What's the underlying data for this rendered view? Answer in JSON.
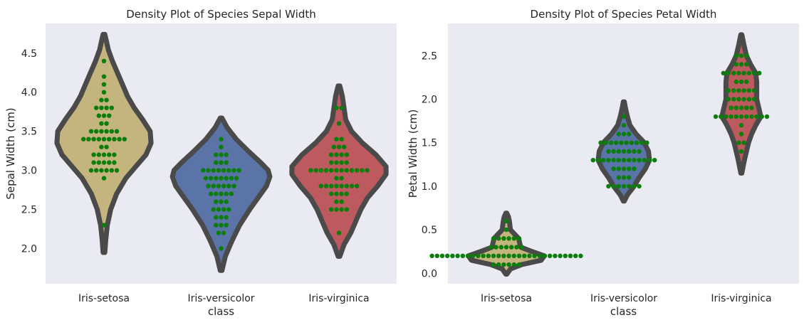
{
  "chart_data": [
    {
      "type": "violin",
      "title": "Density Plot of Species Sepal Width",
      "xlabel": "class",
      "ylabel": "Sepal Width (cm)",
      "ylim": [
        1.55,
        4.88
      ],
      "yticks": [
        2.0,
        2.5,
        3.0,
        3.5,
        4.0,
        4.5
      ],
      "ytick_labels": [
        "2.0",
        "2.5",
        "3.0",
        "3.5",
        "4.0",
        "4.5"
      ],
      "grid": false,
      "categories": [
        "Iris-setosa",
        "Iris-versicolor",
        "Iris-virginica"
      ],
      "colors": [
        "#C4B47E",
        "#5A74A8",
        "#BD5A5F"
      ],
      "violins": [
        {
          "category": "Iris-setosa",
          "min": 1.95,
          "max": 4.74,
          "profile": [
            [
              1.95,
              0.01
            ],
            [
              2.1,
              0.02
            ],
            [
              2.3,
              0.04
            ],
            [
              2.5,
              0.08
            ],
            [
              2.7,
              0.15
            ],
            [
              2.9,
              0.26
            ],
            [
              3.05,
              0.38
            ],
            [
              3.2,
              0.5
            ],
            [
              3.35,
              0.56
            ],
            [
              3.5,
              0.55
            ],
            [
              3.65,
              0.46
            ],
            [
              3.8,
              0.36
            ],
            [
              3.95,
              0.28
            ],
            [
              4.1,
              0.22
            ],
            [
              4.25,
              0.16
            ],
            [
              4.4,
              0.1
            ],
            [
              4.55,
              0.05
            ],
            [
              4.65,
              0.03
            ],
            [
              4.74,
              0.01
            ]
          ]
        },
        {
          "category": "Iris-versicolor",
          "min": 1.72,
          "max": 3.67,
          "profile": [
            [
              1.72,
              0.01
            ],
            [
              1.9,
              0.05
            ],
            [
              2.1,
              0.13
            ],
            [
              2.3,
              0.22
            ],
            [
              2.5,
              0.34
            ],
            [
              2.65,
              0.44
            ],
            [
              2.8,
              0.54
            ],
            [
              2.92,
              0.58
            ],
            [
              3.0,
              0.56
            ],
            [
              3.1,
              0.47
            ],
            [
              3.25,
              0.32
            ],
            [
              3.4,
              0.18
            ],
            [
              3.55,
              0.07
            ],
            [
              3.67,
              0.01
            ]
          ]
        },
        {
          "category": "Iris-virginica",
          "min": 1.9,
          "max": 4.08,
          "profile": [
            [
              1.9,
              0.01
            ],
            [
              2.05,
              0.06
            ],
            [
              2.2,
              0.14
            ],
            [
              2.35,
              0.2
            ],
            [
              2.5,
              0.26
            ],
            [
              2.65,
              0.34
            ],
            [
              2.8,
              0.46
            ],
            [
              2.95,
              0.56
            ],
            [
              3.05,
              0.56
            ],
            [
              3.2,
              0.44
            ],
            [
              3.35,
              0.28
            ],
            [
              3.5,
              0.15
            ],
            [
              3.65,
              0.08
            ],
            [
              3.8,
              0.06
            ],
            [
              3.95,
              0.04
            ],
            [
              4.08,
              0.01
            ]
          ]
        }
      ],
      "points": [
        {
          "category": "Iris-setosa",
          "values": [
            2.3,
            2.9,
            3.0,
            3.0,
            3.0,
            3.0,
            3.0,
            3.0,
            3.1,
            3.1,
            3.1,
            3.1,
            3.1,
            3.2,
            3.2,
            3.2,
            3.2,
            3.2,
            3.3,
            3.3,
            3.4,
            3.4,
            3.4,
            3.4,
            3.4,
            3.4,
            3.4,
            3.4,
            3.4,
            3.5,
            3.5,
            3.5,
            3.5,
            3.5,
            3.5,
            3.6,
            3.6,
            3.7,
            3.7,
            3.7,
            3.8,
            3.8,
            3.8,
            3.8,
            3.9,
            3.9,
            4.0,
            4.1,
            4.2,
            4.4
          ]
        },
        {
          "category": "Iris-versicolor",
          "values": [
            2.0,
            2.2,
            2.2,
            2.3,
            2.3,
            2.3,
            2.4,
            2.4,
            2.4,
            2.5,
            2.5,
            2.5,
            2.5,
            2.6,
            2.6,
            2.6,
            2.7,
            2.7,
            2.7,
            2.7,
            2.7,
            2.8,
            2.8,
            2.8,
            2.8,
            2.8,
            2.8,
            2.9,
            2.9,
            2.9,
            2.9,
            2.9,
            2.9,
            2.9,
            3.0,
            3.0,
            3.0,
            3.0,
            3.0,
            3.0,
            3.0,
            3.0,
            3.1,
            3.1,
            3.1,
            3.2,
            3.2,
            3.2,
            3.3,
            3.4
          ]
        },
        {
          "category": "Iris-virginica",
          "values": [
            2.2,
            2.5,
            2.5,
            2.5,
            2.5,
            2.6,
            2.6,
            2.7,
            2.7,
            2.7,
            2.7,
            2.8,
            2.8,
            2.8,
            2.8,
            2.8,
            2.8,
            2.8,
            2.8,
            2.9,
            2.9,
            3.0,
            3.0,
            3.0,
            3.0,
            3.0,
            3.0,
            3.0,
            3.0,
            3.0,
            3.0,
            3.0,
            3.0,
            3.1,
            3.1,
            3.1,
            3.1,
            3.2,
            3.2,
            3.2,
            3.2,
            3.3,
            3.3,
            3.3,
            3.4,
            3.4,
            3.6,
            3.8,
            3.8
          ]
        }
      ]
    },
    {
      "type": "violin",
      "title": "Density Plot of Species Petal Width",
      "xlabel": "class",
      "ylabel": "Petal Width (cm)",
      "ylim": [
        -0.12,
        2.87
      ],
      "yticks": [
        0.0,
        0.5,
        1.0,
        1.5,
        2.0,
        2.5
      ],
      "ytick_labels": [
        "0.0",
        "0.5",
        "1.0",
        "1.5",
        "2.0",
        "2.5"
      ],
      "grid": false,
      "categories": [
        "Iris-setosa",
        "Iris-versicolor",
        "Iris-virginica"
      ],
      "colors": [
        "#C4B47E",
        "#5A74A8",
        "#BD5A5F"
      ],
      "violins": [
        {
          "category": "Iris-setosa",
          "min": -0.01,
          "max": 0.69,
          "profile": [
            [
              -0.01,
              0.01
            ],
            [
              0.05,
              0.08
            ],
            [
              0.1,
              0.3
            ],
            [
              0.15,
              0.68
            ],
            [
              0.2,
              0.74
            ],
            [
              0.25,
              0.5
            ],
            [
              0.3,
              0.28
            ],
            [
              0.35,
              0.26
            ],
            [
              0.4,
              0.24
            ],
            [
              0.45,
              0.16
            ],
            [
              0.5,
              0.08
            ],
            [
              0.55,
              0.07
            ],
            [
              0.6,
              0.06
            ],
            [
              0.65,
              0.04
            ],
            [
              0.69,
              0.01
            ]
          ]
        },
        {
          "category": "Iris-versicolor",
          "min": 0.83,
          "max": 1.97,
          "profile": [
            [
              0.83,
              0.01
            ],
            [
              0.9,
              0.07
            ],
            [
              1.0,
              0.2
            ],
            [
              1.1,
              0.3
            ],
            [
              1.2,
              0.42
            ],
            [
              1.3,
              0.5
            ],
            [
              1.4,
              0.48
            ],
            [
              1.5,
              0.4
            ],
            [
              1.6,
              0.24
            ],
            [
              1.7,
              0.12
            ],
            [
              1.8,
              0.07
            ],
            [
              1.9,
              0.03
            ],
            [
              1.97,
              0.01
            ]
          ]
        },
        {
          "category": "Iris-virginica",
          "min": 1.15,
          "max": 2.74,
          "profile": [
            [
              1.15,
              0.01
            ],
            [
              1.3,
              0.06
            ],
            [
              1.4,
              0.1
            ],
            [
              1.5,
              0.14
            ],
            [
              1.6,
              0.2
            ],
            [
              1.7,
              0.28
            ],
            [
              1.8,
              0.38
            ],
            [
              1.9,
              0.34
            ],
            [
              2.0,
              0.3
            ],
            [
              2.1,
              0.3
            ],
            [
              2.2,
              0.3
            ],
            [
              2.3,
              0.28
            ],
            [
              2.4,
              0.18
            ],
            [
              2.5,
              0.1
            ],
            [
              2.6,
              0.06
            ],
            [
              2.74,
              0.01
            ]
          ]
        }
      ],
      "points": [
        {
          "category": "Iris-setosa",
          "values": [
            0.1,
            0.1,
            0.1,
            0.1,
            0.1,
            0.1,
            0.2,
            0.2,
            0.2,
            0.2,
            0.2,
            0.2,
            0.2,
            0.2,
            0.2,
            0.2,
            0.2,
            0.2,
            0.2,
            0.2,
            0.2,
            0.2,
            0.2,
            0.2,
            0.2,
            0.2,
            0.2,
            0.2,
            0.2,
            0.2,
            0.2,
            0.2,
            0.2,
            0.2,
            0.2,
            0.2,
            0.3,
            0.3,
            0.3,
            0.3,
            0.3,
            0.3,
            0.3,
            0.4,
            0.4,
            0.4,
            0.4,
            0.4,
            0.4,
            0.5,
            0.6
          ]
        },
        {
          "category": "Iris-versicolor",
          "values": [
            1.0,
            1.0,
            1.0,
            1.0,
            1.0,
            1.0,
            1.0,
            1.1,
            1.1,
            1.1,
            1.2,
            1.2,
            1.2,
            1.2,
            1.2,
            1.3,
            1.3,
            1.3,
            1.3,
            1.3,
            1.3,
            1.3,
            1.3,
            1.3,
            1.3,
            1.3,
            1.3,
            1.3,
            1.4,
            1.4,
            1.4,
            1.4,
            1.4,
            1.4,
            1.4,
            1.5,
            1.5,
            1.5,
            1.5,
            1.5,
            1.5,
            1.5,
            1.5,
            1.5,
            1.5,
            1.6,
            1.6,
            1.6,
            1.7,
            1.8
          ]
        },
        {
          "category": "Iris-virginica",
          "values": [
            1.4,
            1.5,
            1.5,
            1.6,
            1.7,
            1.8,
            1.8,
            1.8,
            1.8,
            1.8,
            1.8,
            1.8,
            1.8,
            1.8,
            1.8,
            1.8,
            1.9,
            1.9,
            1.9,
            1.9,
            1.9,
            2.0,
            2.0,
            2.0,
            2.0,
            2.0,
            2.0,
            2.1,
            2.1,
            2.1,
            2.1,
            2.1,
            2.1,
            2.2,
            2.2,
            2.2,
            2.3,
            2.3,
            2.3,
            2.3,
            2.3,
            2.3,
            2.3,
            2.3,
            2.4,
            2.4,
            2.4,
            2.5,
            2.5,
            2.5
          ]
        }
      ]
    }
  ]
}
